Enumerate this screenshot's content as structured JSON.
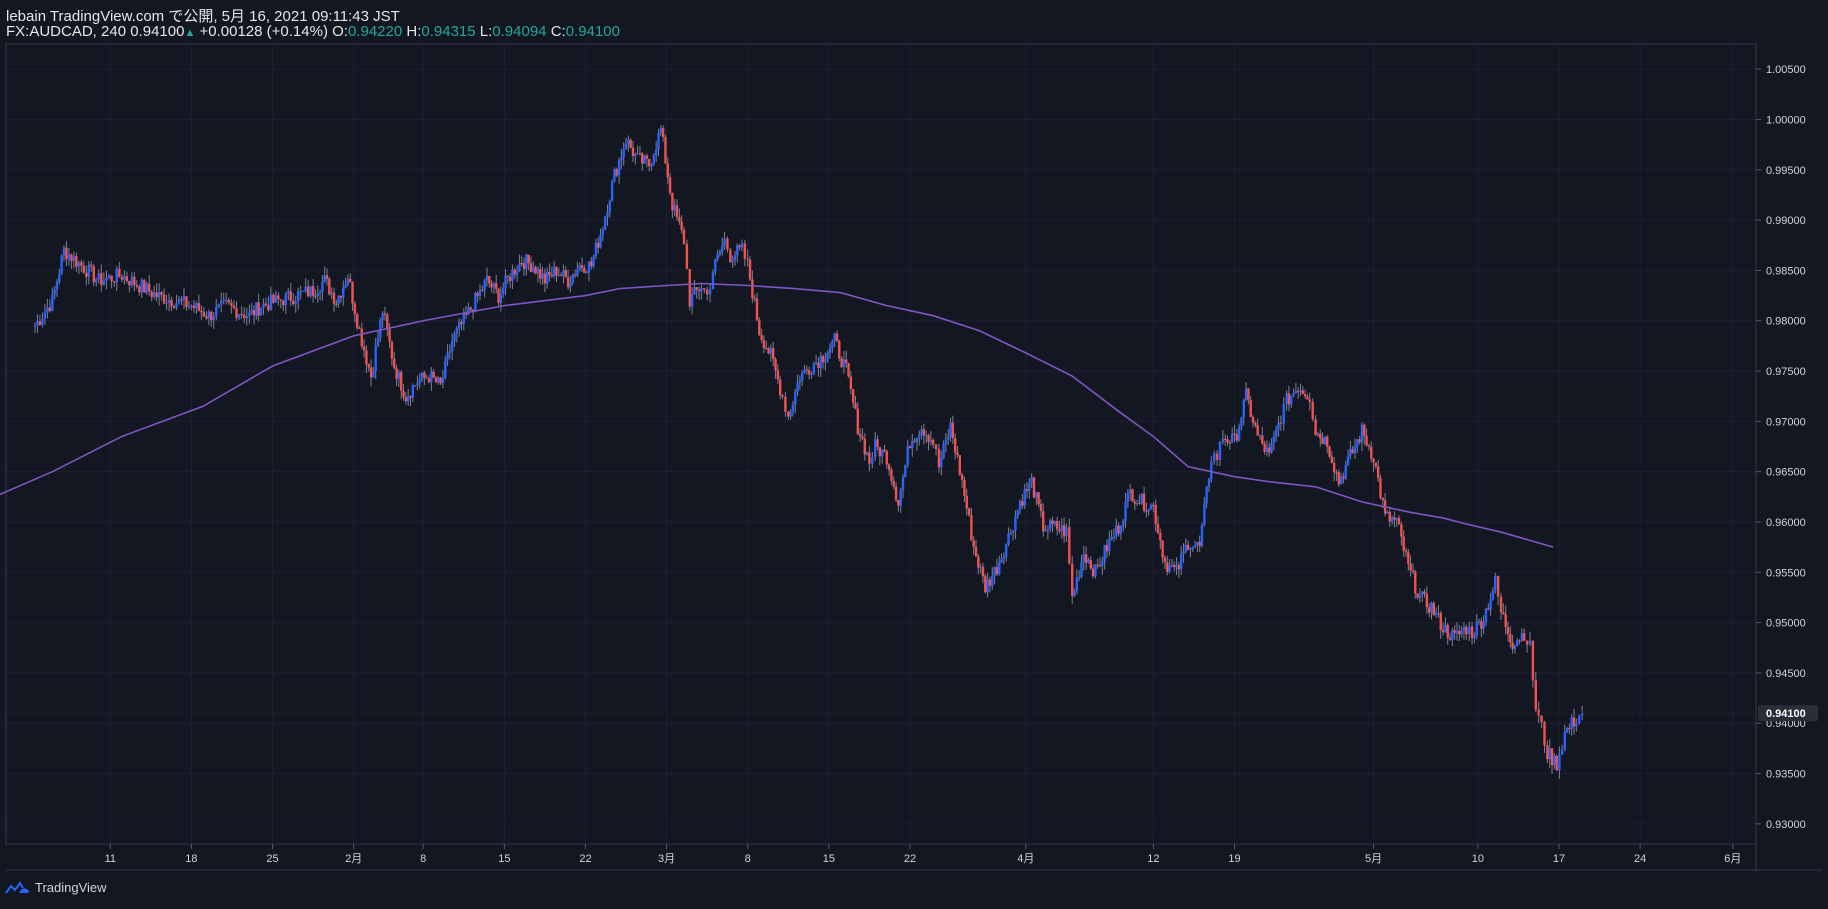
{
  "header": {
    "line1": "lebain TradingView.com で公開, 5月 16, 2021 09:11:43 JST",
    "symbol": "FX:AUDCAD, 240",
    "last": "0.94100",
    "change": "+0.00128 (+0.14%)",
    "o_label": "O:",
    "o_value": "0.94220",
    "h_label": "H:",
    "h_value": "0.94315",
    "l_label": "L:",
    "l_value": "0.94094",
    "c_label": "C:",
    "c_value": "0.94100"
  },
  "footer": {
    "brand": "TradingView",
    "icon": "tradingview-logo-icon"
  },
  "colors": {
    "background": "#131722",
    "up": "#2962ff",
    "down": "#ef5350",
    "wick": "#7b8193",
    "ma": "#7e57c2",
    "axis_text": "#d1d4dc",
    "accent_green": "#26a69a"
  },
  "chart_data": {
    "type": "candlestick",
    "title": "",
    "y_axis": {
      "ticks": [
        "1.00500",
        "1.00000",
        "0.99500",
        "0.99000",
        "0.98500",
        "0.98000",
        "0.97500",
        "0.97000",
        "0.96500",
        "0.96000",
        "0.95500",
        "0.95000",
        "0.94500",
        "0.94000",
        "0.93500",
        "0.93000"
      ],
      "range": [
        0.928,
        1.0075
      ],
      "last_price_label": "0.94100"
    },
    "x_axis": {
      "ticks": [
        {
          "label": "11",
          "day": 11
        },
        {
          "label": "18",
          "day": 18
        },
        {
          "label": "25",
          "day": 25
        },
        {
          "label": "2月",
          "day": 32
        },
        {
          "label": "8",
          "day": 38
        },
        {
          "label": "15",
          "day": 45
        },
        {
          "label": "22",
          "day": 52
        },
        {
          "label": "3月",
          "day": 59
        },
        {
          "label": "8",
          "day": 66
        },
        {
          "label": "15",
          "day": 73
        },
        {
          "label": "22",
          "day": 80
        },
        {
          "label": "4月",
          "day": 90
        },
        {
          "label": "12",
          "day": 101
        },
        {
          "label": "19",
          "day": 108
        },
        {
          "label": "5月",
          "day": 120
        },
        {
          "label": "10",
          "day": 129
        },
        {
          "label": "17",
          "day": 136
        },
        {
          "label": "24",
          "day": 143
        },
        {
          "label": "6月",
          "day": 151
        }
      ]
    },
    "price_path": [
      [
        4.5,
        0.9795
      ],
      [
        6,
        0.982
      ],
      [
        7,
        0.987
      ],
      [
        8.5,
        0.9855
      ],
      [
        10,
        0.984
      ],
      [
        12,
        0.9845
      ],
      [
        13.5,
        0.9835
      ],
      [
        15,
        0.9825
      ],
      [
        16.5,
        0.982
      ],
      [
        18,
        0.9815
      ],
      [
        19.5,
        0.9805
      ],
      [
        21,
        0.9815
      ],
      [
        23,
        0.9805
      ],
      [
        24,
        0.9815
      ],
      [
        25.5,
        0.982
      ],
      [
        27,
        0.9825
      ],
      [
        28.5,
        0.983
      ],
      [
        29.5,
        0.984
      ],
      [
        30.5,
        0.982
      ],
      [
        31.5,
        0.9845
      ],
      [
        32.5,
        0.979
      ],
      [
        33.5,
        0.9745
      ],
      [
        34.5,
        0.981
      ],
      [
        35.5,
        0.9755
      ],
      [
        36.5,
        0.9725
      ],
      [
        37.5,
        0.974
      ],
      [
        38.5,
        0.9745
      ],
      [
        39.5,
        0.9735
      ],
      [
        40.5,
        0.978
      ],
      [
        41.5,
        0.98
      ],
      [
        42.5,
        0.982
      ],
      [
        43.5,
        0.984
      ],
      [
        44.5,
        0.9825
      ],
      [
        45.5,
        0.9845
      ],
      [
        46.5,
        0.986
      ],
      [
        47.5,
        0.9855
      ],
      [
        48.5,
        0.984
      ],
      [
        49.5,
        0.985
      ],
      [
        50.5,
        0.984
      ],
      [
        51.5,
        0.9855
      ],
      [
        52.5,
        0.9855
      ],
      [
        53.5,
        0.9895
      ],
      [
        54.5,
        0.9945
      ],
      [
        55.5,
        0.998
      ],
      [
        56.5,
        0.996
      ],
      [
        57.5,
        0.9955
      ],
      [
        58.5,
        0.999
      ],
      [
        59.5,
        0.9915
      ],
      [
        60.5,
        0.988
      ],
      [
        61,
        0.982
      ],
      [
        62,
        0.9835
      ],
      [
        62.5,
        0.9825
      ],
      [
        63,
        0.985
      ],
      [
        64,
        0.988
      ],
      [
        64.5,
        0.9865
      ],
      [
        65.5,
        0.987
      ],
      [
        66,
        0.9855
      ],
      [
        67,
        0.979
      ],
      [
        68,
        0.9765
      ],
      [
        69,
        0.9725
      ],
      [
        69.5,
        0.9705
      ],
      [
        70.5,
        0.9745
      ],
      [
        71.5,
        0.9755
      ],
      [
        72.5,
        0.9765
      ],
      [
        73.5,
        0.978
      ],
      [
        74.5,
        0.975
      ],
      [
        75.5,
        0.9695
      ],
      [
        76.5,
        0.966
      ],
      [
        77,
        0.9675
      ],
      [
        78,
        0.9665
      ],
      [
        79,
        0.962
      ],
      [
        80,
        0.968
      ],
      [
        81,
        0.9695
      ],
      [
        82,
        0.968
      ],
      [
        82.5,
        0.9655
      ],
      [
        83.5,
        0.9695
      ],
      [
        84.5,
        0.964
      ],
      [
        85.5,
        0.9575
      ],
      [
        86.5,
        0.9535
      ],
      [
        87.5,
        0.9555
      ],
      [
        88.5,
        0.9585
      ],
      [
        89.5,
        0.962
      ],
      [
        90.5,
        0.964
      ],
      [
        91.5,
        0.9595
      ],
      [
        92.5,
        0.9595
      ],
      [
        93.5,
        0.959
      ],
      [
        94,
        0.9525
      ],
      [
        95,
        0.957
      ],
      [
        96,
        0.955
      ],
      [
        97,
        0.9575
      ],
      [
        98,
        0.9595
      ],
      [
        99,
        0.963
      ],
      [
        100,
        0.962
      ],
      [
        101,
        0.9615
      ],
      [
        102,
        0.956
      ],
      [
        103,
        0.955
      ],
      [
        104,
        0.958
      ],
      [
        105,
        0.9575
      ],
      [
        106,
        0.9665
      ],
      [
        106.5,
        0.9665
      ],
      [
        107,
        0.9685
      ],
      [
        108,
        0.968
      ],
      [
        109,
        0.9725
      ],
      [
        110,
        0.9685
      ],
      [
        111,
        0.9665
      ],
      [
        112,
        0.9705
      ],
      [
        112.5,
        0.972
      ],
      [
        113.5,
        0.9735
      ],
      [
        114.5,
        0.9725
      ],
      [
        115,
        0.969
      ],
      [
        116,
        0.968
      ],
      [
        117,
        0.964
      ],
      [
        118,
        0.9665
      ],
      [
        119,
        0.969
      ],
      [
        120,
        0.9665
      ],
      [
        121,
        0.9605
      ],
      [
        122,
        0.96
      ],
      [
        123,
        0.9555
      ],
      [
        124,
        0.9525
      ],
      [
        125,
        0.9515
      ],
      [
        126,
        0.9495
      ],
      [
        127,
        0.9485
      ],
      [
        128,
        0.9495
      ],
      [
        128.5,
        0.949
      ],
      [
        129.5,
        0.9505
      ],
      [
        130.5,
        0.954
      ],
      [
        131,
        0.951
      ],
      [
        132,
        0.948
      ],
      [
        133,
        0.949
      ],
      [
        133.5,
        0.9475
      ],
      [
        134,
        0.9415
      ],
      [
        134.5,
        0.9395
      ],
      [
        135,
        0.937
      ],
      [
        135.8,
        0.936
      ],
      [
        136.5,
        0.939
      ],
      [
        137.5,
        0.9405
      ],
      [
        138,
        0.941
      ]
    ],
    "moving_average": [
      [
        0,
        0.962
      ],
      [
        6,
        0.965
      ],
      [
        12,
        0.9685
      ],
      [
        19,
        0.9715
      ],
      [
        25,
        0.9755
      ],
      [
        32,
        0.9785
      ],
      [
        38,
        0.98
      ],
      [
        45,
        0.9815
      ],
      [
        52,
        0.9825
      ],
      [
        55,
        0.9832
      ],
      [
        59,
        0.9835
      ],
      [
        62,
        0.9837
      ],
      [
        66,
        0.9835
      ],
      [
        70,
        0.9832
      ],
      [
        74,
        0.9828
      ],
      [
        78,
        0.9815
      ],
      [
        82,
        0.9805
      ],
      [
        86,
        0.979
      ],
      [
        90,
        0.9768
      ],
      [
        94,
        0.9745
      ],
      [
        98,
        0.971
      ],
      [
        101,
        0.9685
      ],
      [
        104,
        0.9655
      ],
      [
        108,
        0.9645
      ],
      [
        111,
        0.964
      ],
      [
        115,
        0.9635
      ],
      [
        119,
        0.962
      ],
      [
        123,
        0.961
      ],
      [
        126,
        0.9604
      ],
      [
        128,
        0.9598
      ],
      [
        131,
        0.959
      ],
      [
        134,
        0.958
      ],
      [
        135.5,
        0.9575
      ]
    ]
  }
}
